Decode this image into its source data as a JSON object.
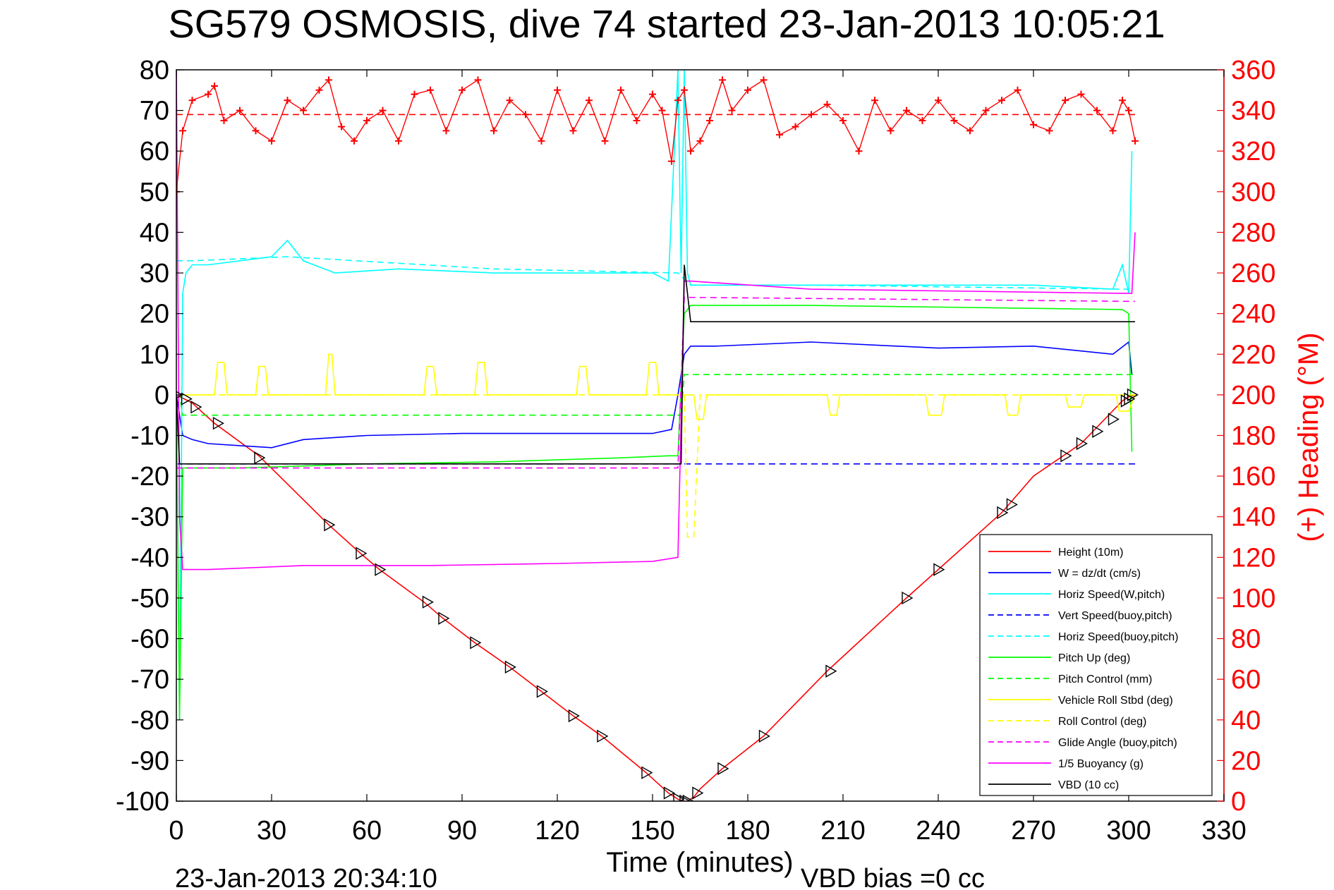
{
  "title": "SG579 OSMOSIS, dive 74 started 23-Jan-2013 10:05:21",
  "footer_left": "23-Jan-2013 20:34:10",
  "footer_right": "VBD bias =0 cc",
  "colors": {
    "height": "#ff0000",
    "w": "#0000ff",
    "horiz": "#00ffff",
    "pitch": "#00ff00",
    "roll": "#ffff00",
    "glide": "#ff00ff",
    "vbd": "#000000",
    "heading": "#ff0000"
  },
  "chart_data": {
    "type": "line",
    "title": "SG579 OSMOSIS, dive 74 started 23-Jan-2013 10:05:21",
    "xlabel": "Time (minutes)",
    "ylabel": "",
    "ylabel_right": "(+) Heading (°M)",
    "xlim": [
      0,
      330
    ],
    "ylim": [
      -100,
      80
    ],
    "ylim_right": [
      0,
      360
    ],
    "xticks": [
      "0",
      "30",
      "60",
      "90",
      "120",
      "150",
      "180",
      "210",
      "240",
      "270",
      "300",
      "330"
    ],
    "yticks": [
      "80",
      "70",
      "60",
      "50",
      "40",
      "30",
      "20",
      "10",
      "0",
      "-10",
      "-20",
      "-30",
      "-40",
      "-50",
      "-60",
      "-70",
      "-80",
      "-90",
      "-100"
    ],
    "yticks_right": [
      "360",
      "340",
      "320",
      "300",
      "280",
      "260",
      "240",
      "220",
      "200",
      "180",
      "160",
      "140",
      "120",
      "100",
      "80",
      "60",
      "40",
      "20",
      "0"
    ],
    "grid": false,
    "legend_position": "bottom-right",
    "legend": [
      {
        "label": "Height (10m)",
        "color": "#ff0000",
        "dash": false
      },
      {
        "label": "W = dz/dt (cm/s)",
        "color": "#0000ff",
        "dash": false
      },
      {
        "label": "Horiz Speed(W,pitch)",
        "color": "#00ffff",
        "dash": false
      },
      {
        "label": "Vert Speed(buoy,pitch)",
        "color": "#0000ff",
        "dash": true
      },
      {
        "label": "Horiz Speed(buoy,pitch)",
        "color": "#00ffff",
        "dash": true
      },
      {
        "label": "Pitch Up (deg)",
        "color": "#00ff00",
        "dash": false
      },
      {
        "label": "Pitch Control (mm)",
        "color": "#00ff00",
        "dash": true
      },
      {
        "label": "Vehicle Roll Stbd (deg)",
        "color": "#ffff00",
        "dash": false
      },
      {
        "label": "Roll Control (deg)",
        "color": "#ffff00",
        "dash": true
      },
      {
        "label": "Glide Angle (buoy,pitch)",
        "color": "#ff00ff",
        "dash": true
      },
      {
        "label": "1/5 Buoyancy (g)",
        "color": "#ff00ff",
        "dash": false
      },
      {
        "label": "VBD (10 cc)",
        "color": "#000000",
        "dash": false
      }
    ],
    "series": [
      {
        "name": "Height (10m)",
        "color": "#ff0000",
        "dash": false,
        "axis": "left",
        "x": [
          0,
          5,
          12,
          26,
          48,
          58,
          64,
          78,
          84,
          94,
          105,
          115,
          125,
          134,
          148,
          155,
          159,
          161,
          163,
          165,
          172,
          185,
          205,
          230,
          240,
          260,
          270,
          285,
          298,
          300,
          302
        ],
        "y": [
          0,
          -2,
          -7,
          -15,
          -32,
          -39,
          -43,
          -51,
          -55,
          -61,
          -67,
          -73,
          -79,
          -84,
          -93,
          -98,
          -100,
          -100,
          -99,
          -97,
          -92,
          -84,
          -68,
          -50,
          -43,
          -29,
          -20,
          -12,
          -1.5,
          -0.5,
          0
        ]
      },
      {
        "name": "W = dz/dt (cm/s)",
        "color": "#0000ff",
        "dash": false,
        "axis": "left",
        "x": [
          0,
          2,
          5,
          10,
          20,
          30,
          40,
          60,
          90,
          120,
          150,
          156,
          158,
          160,
          162,
          170,
          200,
          240,
          270,
          295,
          300,
          301
        ],
        "y": [
          0,
          -10,
          -11,
          -12,
          -12.5,
          -13,
          -11,
          -10,
          -9.5,
          -9.5,
          -9.5,
          -8.5,
          0,
          10,
          12,
          12,
          13,
          11.5,
          12,
          10,
          13,
          5
        ]
      },
      {
        "name": "Horiz Speed(W,pitch)",
        "color": "#00ffff",
        "dash": false,
        "axis": "left",
        "x": [
          0,
          1,
          2,
          3,
          5,
          10,
          20,
          30,
          35,
          40,
          50,
          70,
          100,
          130,
          150,
          155,
          158,
          159,
          160,
          161,
          162,
          170,
          200,
          240,
          270,
          295,
          298,
          300,
          301
        ],
        "y": [
          0,
          -80,
          25,
          30,
          32,
          32,
          33,
          34,
          38,
          33,
          30,
          31,
          30,
          30,
          30,
          28,
          80,
          30,
          80,
          30,
          27,
          27,
          27,
          27,
          27,
          26,
          32,
          25,
          60
        ]
      },
      {
        "name": "Vert Speed(buoy,pitch)",
        "color": "#0000ff",
        "dash": true,
        "axis": "left",
        "x": [
          0,
          5,
          158,
          160,
          302
        ],
        "y": [
          -17,
          -17,
          -17,
          -17,
          -17
        ]
      },
      {
        "name": "Horiz Speed(buoy,pitch)",
        "color": "#00ffff",
        "dash": true,
        "axis": "left",
        "x": [
          0,
          5,
          35,
          100,
          158,
          162,
          200,
          250,
          300
        ],
        "y": [
          33,
          33,
          34,
          31,
          30,
          27,
          27,
          26.5,
          26
        ]
      },
      {
        "name": "Pitch Up (deg)",
        "color": "#00ff00",
        "dash": false,
        "axis": "left",
        "x": [
          0,
          1,
          2,
          4,
          20,
          60,
          100,
          140,
          155,
          158,
          160,
          162,
          200,
          250,
          298,
          300,
          301
        ],
        "y": [
          0,
          -80,
          -18,
          -18,
          -18,
          -17,
          -16.5,
          -15.5,
          -15,
          -15,
          20,
          22,
          22,
          21.5,
          21,
          20,
          -14
        ]
      },
      {
        "name": "Pitch Control (mm)",
        "color": "#00ff00",
        "dash": true,
        "axis": "left",
        "x": [
          0,
          1,
          2,
          159,
          160,
          302
        ],
        "y": [
          0,
          0,
          -5,
          -5,
          5,
          5
        ]
      },
      {
        "name": "Vehicle Roll Stbd (deg)",
        "color": "#ffff00",
        "dash": false,
        "axis": "left",
        "x": [
          0,
          12,
          13,
          15,
          16,
          25,
          26,
          28,
          29,
          47,
          48,
          49,
          50,
          78,
          79,
          81,
          82,
          94,
          95,
          97,
          98,
          126,
          127,
          129,
          130,
          148,
          149,
          151,
          152,
          163,
          164,
          166,
          167,
          205,
          206,
          208,
          209,
          236,
          237,
          241,
          242,
          261,
          262,
          265,
          266,
          280,
          281,
          285,
          286,
          296,
          297,
          300,
          302
        ],
        "y": [
          0,
          0,
          8,
          8,
          0,
          0,
          7,
          7,
          0,
          0,
          10,
          10,
          0,
          0,
          7,
          7,
          0,
          0,
          8,
          8,
          0,
          0,
          7,
          7,
          0,
          0,
          8,
          8,
          0,
          0,
          -6,
          -6,
          0,
          0,
          -5,
          -5,
          0,
          0,
          -5,
          -5,
          0,
          0,
          -5,
          -5,
          0,
          0,
          -3,
          -3,
          0,
          0,
          -4,
          -4,
          0
        ]
      },
      {
        "name": "Roll Control (deg)",
        "color": "#ffff00",
        "dash": true,
        "axis": "left",
        "x": [
          0,
          158,
          160,
          161,
          163,
          165,
          302
        ],
        "y": [
          0,
          0,
          0,
          -35,
          -35,
          0,
          0
        ]
      },
      {
        "name": "Glide Angle (buoy,pitch)",
        "color": "#ff00ff",
        "dash": true,
        "axis": "left",
        "x": [
          0,
          2,
          158,
          160,
          302
        ],
        "y": [
          -18,
          -18,
          -18,
          24,
          23
        ]
      },
      {
        "name": "1/5 Buoyancy (g)",
        "color": "#ff00ff",
        "dash": false,
        "axis": "left",
        "x": [
          0,
          1,
          2,
          10,
          40,
          80,
          120,
          150,
          158,
          160,
          162,
          200,
          250,
          298,
          301,
          302
        ],
        "y": [
          80,
          -30,
          -43,
          -43,
          -42,
          -42,
          -41.5,
          -41,
          -40,
          28,
          28,
          26,
          25.5,
          25,
          25,
          40
        ]
      },
      {
        "name": "VBD (10 cc)",
        "color": "#000000",
        "dash": false,
        "axis": "left",
        "x": [
          0,
          1,
          2,
          158,
          159,
          160,
          162,
          302
        ],
        "y": [
          0,
          -17,
          -17,
          -17,
          -17,
          32,
          18,
          18
        ]
      },
      {
        "name": "(+) Heading",
        "color": "#ff0000",
        "dash": false,
        "axis": "right",
        "marker": "plus",
        "x": [
          0,
          2,
          5,
          10,
          12,
          15,
          20,
          25,
          30,
          35,
          40,
          45,
          48,
          52,
          56,
          60,
          65,
          70,
          75,
          80,
          85,
          90,
          95,
          100,
          105,
          110,
          115,
          120,
          125,
          130,
          135,
          140,
          145,
          150,
          153,
          156,
          158,
          160,
          162,
          165,
          168,
          172,
          175,
          180,
          185,
          190,
          195,
          200,
          205,
          210,
          215,
          220,
          225,
          230,
          235,
          240,
          245,
          250,
          255,
          260,
          265,
          270,
          275,
          280,
          285,
          290,
          295,
          298,
          300,
          302
        ],
        "y": [
          300,
          330,
          345,
          348,
          352,
          335,
          340,
          330,
          325,
          345,
          340,
          350,
          355,
          332,
          325,
          335,
          340,
          325,
          348,
          350,
          330,
          350,
          355,
          330,
          345,
          338,
          325,
          350,
          330,
          345,
          325,
          350,
          335,
          348,
          340,
          315,
          345,
          350,
          320,
          325,
          335,
          355,
          340,
          350,
          355,
          328,
          332,
          338,
          343,
          335,
          320,
          345,
          330,
          340,
          335,
          345,
          335,
          330,
          340,
          345,
          350,
          333,
          330,
          345,
          348,
          340,
          330,
          345,
          340,
          325
        ]
      },
      {
        "name": "Heading mean",
        "color": "#ff0000",
        "dash": true,
        "axis": "right",
        "x": [
          0,
          302
        ],
        "y": [
          338,
          338
        ]
      }
    ],
    "markers": {
      "name": "Height samples",
      "color": "#000000",
      "x": [
        0,
        3,
        6,
        13,
        26,
        48,
        58,
        64,
        79,
        84,
        94,
        105,
        115,
        125,
        134,
        148,
        155,
        158,
        160,
        161,
        164,
        172,
        185,
        206,
        230,
        240,
        260,
        263,
        280,
        285,
        290,
        295,
        299,
        300,
        301
      ],
      "y": [
        0,
        -1,
        -3,
        -7,
        -15.5,
        -32,
        -39,
        -43,
        -51,
        -55,
        -61,
        -67,
        -73,
        -79,
        -84,
        -93,
        -98,
        -99.5,
        -100,
        -100,
        -98,
        -92,
        -84,
        -68,
        -50,
        -43,
        -29,
        -27,
        -15,
        -12,
        -9,
        -6,
        -1.5,
        -1,
        0
      ]
    }
  }
}
